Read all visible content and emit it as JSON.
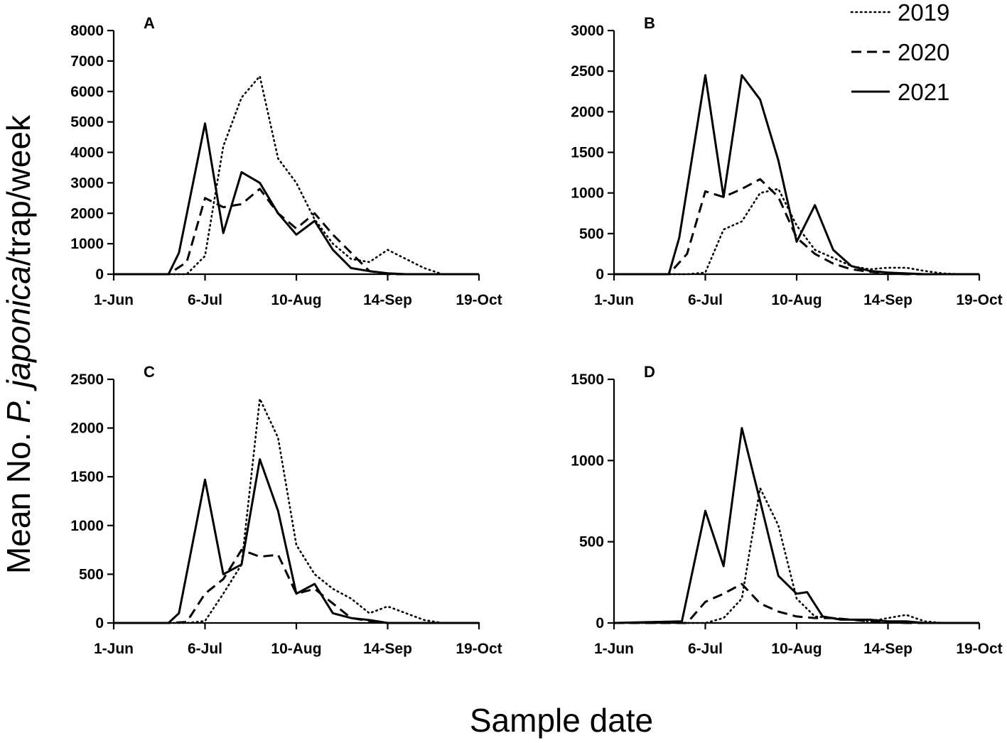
{
  "figure": {
    "ylabel_prefix": "Mean No. ",
    "ylabel_italic": "P. japonica",
    "ylabel_suffix": "/trap/week",
    "xlabel": "Sample date"
  },
  "legend": [
    {
      "label": "2019",
      "style": "dotted"
    },
    {
      "label": "2020",
      "style": "dashed"
    },
    {
      "label": "2021",
      "style": "solid"
    }
  ],
  "chart_data": [
    {
      "type": "line",
      "panel": "A",
      "x_unit": "days since 1-Jun",
      "x_ticks": [
        0,
        35,
        70,
        105,
        140
      ],
      "x_tick_labels": [
        "1-Jun",
        "6-Jul",
        "10-Aug",
        "14-Sep",
        "19-Oct"
      ],
      "xlim": [
        0,
        140
      ],
      "ylim": [
        0,
        8000
      ],
      "y_ticks": [
        0,
        1000,
        2000,
        3000,
        4000,
        5000,
        6000,
        7000,
        8000
      ],
      "series": [
        {
          "name": "2019",
          "style": "dotted",
          "x": [
            0,
            28,
            35,
            42,
            49,
            56,
            63,
            70,
            77,
            84,
            91,
            98,
            105,
            112,
            119,
            126,
            133,
            140
          ],
          "y": [
            0,
            0,
            600,
            4200,
            5800,
            6500,
            3800,
            3000,
            1800,
            1000,
            500,
            400,
            800,
            500,
            200,
            0,
            0,
            0
          ]
        },
        {
          "name": "2020",
          "style": "dashed",
          "x": [
            0,
            21,
            28,
            35,
            42,
            49,
            56,
            63,
            70,
            77,
            84,
            91,
            98,
            105,
            112,
            119,
            126,
            133,
            140
          ],
          "y": [
            0,
            0,
            400,
            2500,
            2200,
            2300,
            2800,
            2000,
            1500,
            2000,
            1300,
            700,
            100,
            0,
            0,
            0,
            0,
            0,
            0
          ]
        },
        {
          "name": "2021",
          "style": "solid",
          "x": [
            0,
            21,
            25,
            35,
            42,
            49,
            56,
            63,
            70,
            77,
            84,
            91,
            98,
            105,
            112,
            119,
            126,
            133,
            140
          ],
          "y": [
            0,
            0,
            700,
            4950,
            1350,
            3350,
            3000,
            2000,
            1300,
            1750,
            800,
            200,
            100,
            30,
            0,
            0,
            0,
            0,
            0
          ]
        }
      ]
    },
    {
      "type": "line",
      "panel": "B",
      "x_unit": "days since 1-Jun",
      "x_ticks": [
        0,
        35,
        70,
        105,
        140
      ],
      "x_tick_labels": [
        "1-Jun",
        "6-Jul",
        "10-Aug",
        "14-Sep",
        "19-Oct"
      ],
      "xlim": [
        0,
        140
      ],
      "ylim": [
        0,
        3000
      ],
      "y_ticks": [
        0,
        500,
        1000,
        1500,
        2000,
        2500,
        3000
      ],
      "series": [
        {
          "name": "2019",
          "style": "dotted",
          "x": [
            0,
            28,
            35,
            42,
            49,
            56,
            63,
            70,
            77,
            84,
            91,
            98,
            105,
            112,
            119,
            126,
            133,
            140
          ],
          "y": [
            0,
            0,
            20,
            550,
            650,
            1000,
            1050,
            600,
            300,
            200,
            100,
            60,
            80,
            80,
            40,
            10,
            0,
            0
          ]
        },
        {
          "name": "2020",
          "style": "dashed",
          "x": [
            0,
            21,
            28,
            35,
            42,
            49,
            56,
            63,
            70,
            77,
            84,
            91,
            98,
            105,
            112,
            119,
            126,
            133,
            140
          ],
          "y": [
            0,
            0,
            250,
            1020,
            950,
            1050,
            1170,
            950,
            450,
            250,
            130,
            60,
            30,
            10,
            0,
            0,
            0,
            0,
            0
          ]
        },
        {
          "name": "2021",
          "style": "solid",
          "x": [
            0,
            21,
            25,
            35,
            42,
            49,
            56,
            63,
            70,
            77,
            84,
            91,
            98,
            105,
            112,
            119,
            126,
            133,
            140
          ],
          "y": [
            0,
            0,
            450,
            2450,
            950,
            2450,
            2150,
            1400,
            400,
            850,
            300,
            100,
            40,
            20,
            10,
            0,
            0,
            0,
            0
          ]
        }
      ]
    },
    {
      "type": "line",
      "panel": "C",
      "x_unit": "days since 1-Jun",
      "x_ticks": [
        0,
        35,
        70,
        105,
        140
      ],
      "x_tick_labels": [
        "1-Jun",
        "6-Jul",
        "10-Aug",
        "14-Sep",
        "19-Oct"
      ],
      "xlim": [
        0,
        140
      ],
      "ylim": [
        0,
        2500
      ],
      "y_ticks": [
        0,
        500,
        1000,
        1500,
        2000,
        2500
      ],
      "series": [
        {
          "name": "2019",
          "style": "dotted",
          "x": [
            0,
            28,
            35,
            42,
            49,
            56,
            63,
            70,
            77,
            84,
            91,
            98,
            105,
            112,
            119,
            126,
            133,
            140
          ],
          "y": [
            0,
            0,
            20,
            300,
            600,
            2300,
            1900,
            800,
            500,
            350,
            250,
            100,
            170,
            100,
            30,
            0,
            0,
            0
          ]
        },
        {
          "name": "2020",
          "style": "dashed",
          "x": [
            0,
            21,
            28,
            35,
            42,
            49,
            56,
            63,
            70,
            77,
            84,
            91,
            98,
            105,
            112,
            119,
            126,
            133,
            140
          ],
          "y": [
            0,
            0,
            10,
            300,
            450,
            750,
            680,
            700,
            300,
            350,
            200,
            50,
            20,
            0,
            0,
            0,
            0,
            0,
            0
          ]
        },
        {
          "name": "2021",
          "style": "solid",
          "x": [
            0,
            21,
            25,
            35,
            42,
            49,
            56,
            63,
            70,
            77,
            84,
            91,
            98,
            105,
            112,
            119,
            126,
            133,
            140
          ],
          "y": [
            0,
            0,
            100,
            1470,
            500,
            600,
            1680,
            1150,
            300,
            400,
            100,
            50,
            30,
            0,
            0,
            0,
            0,
            0,
            0
          ]
        }
      ]
    },
    {
      "type": "line",
      "panel": "D",
      "x_unit": "days since 1-Jun",
      "x_ticks": [
        0,
        35,
        70,
        105,
        140
      ],
      "x_tick_labels": [
        "1-Jun",
        "6-Jul",
        "10-Aug",
        "14-Sep",
        "19-Oct"
      ],
      "xlim": [
        0,
        140
      ],
      "ylim": [
        0,
        1500
      ],
      "y_ticks": [
        0,
        500,
        1000,
        1500
      ],
      "series": [
        {
          "name": "2019",
          "style": "dotted",
          "x": [
            0,
            35,
            42,
            49,
            56,
            63,
            70,
            77,
            84,
            91,
            98,
            105,
            112,
            119,
            126,
            133,
            140
          ],
          "y": [
            0,
            0,
            30,
            150,
            830,
            600,
            150,
            40,
            30,
            20,
            10,
            30,
            50,
            10,
            0,
            0,
            0
          ]
        },
        {
          "name": "2020",
          "style": "dashed",
          "x": [
            0,
            28,
            35,
            42,
            49,
            56,
            63,
            70,
            77,
            84,
            91,
            98,
            105,
            112,
            119,
            126,
            133,
            140
          ],
          "y": [
            0,
            0,
            130,
            180,
            240,
            120,
            70,
            40,
            30,
            30,
            20,
            10,
            5,
            0,
            0,
            0,
            0,
            0
          ]
        },
        {
          "name": "2021",
          "style": "solid",
          "x": [
            0,
            26,
            35,
            42,
            49,
            56,
            63,
            70,
            74,
            80,
            87,
            98,
            105,
            112,
            119,
            126,
            133,
            140
          ],
          "y": [
            0,
            10,
            690,
            350,
            1200,
            750,
            290,
            180,
            190,
            40,
            20,
            20,
            10,
            10,
            0,
            0,
            0,
            0
          ]
        }
      ]
    }
  ]
}
